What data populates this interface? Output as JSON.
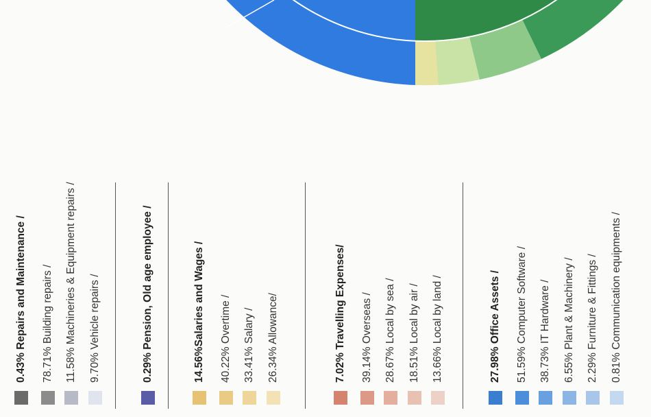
{
  "sections": [
    {
      "title": "0.43% Repairs and Maintenance /",
      "color": "#6b6b6b",
      "items": [
        {
          "text": "78.71% Building repairs /",
          "color": "#8c8c8c"
        },
        {
          "text": "11.58% Machineries & Equipment repairs /",
          "color": "#b6bac6"
        },
        {
          "text": "9.70% Vehicle repairs /",
          "color": "#dfe4ef"
        }
      ]
    },
    {
      "title": "0.29% Pension, Old age employee /",
      "color": "#5a5ca6",
      "items": []
    },
    {
      "title": "14.56%Salaries and Wages /",
      "color": "#e6c272",
      "items": [
        {
          "text": "40.22% Overtime /",
          "color": "#eacb85"
        },
        {
          "text": "33.41% Salary /",
          "color": "#eed59a"
        },
        {
          "text": "26.34% Allowance/",
          "color": "#f3e2b5"
        }
      ]
    },
    {
      "title": "7.02% Travelling Expenses/",
      "color": "#d4846e",
      "items": [
        {
          "text": "39.14% Overseas /",
          "color": "#dc9a86"
        },
        {
          "text": "28.67% Local by sea /",
          "color": "#e3ae9d"
        },
        {
          "text": "18.51% Local by air /",
          "color": "#e9c1b3"
        },
        {
          "text": "13.66% Local by land /",
          "color": "#eed1c6"
        }
      ]
    },
    {
      "title": "27.98% Office Assets /",
      "color": "#3b7ed0",
      "items": [
        {
          "text": "51.59% Computer Software /",
          "color": "#4d8edb"
        },
        {
          "text": "38.73% IT Hardware /",
          "color": "#69a0e0"
        },
        {
          "text": "6.55% Plant & Machinery /",
          "color": "#8cb5e6"
        },
        {
          "text": "2.29% Furniture & Fittings /",
          "color": "#a8c6ea"
        },
        {
          "text": "0.81% Communication equipments /",
          "color": "#c4d8ef"
        }
      ]
    }
  ]
}
